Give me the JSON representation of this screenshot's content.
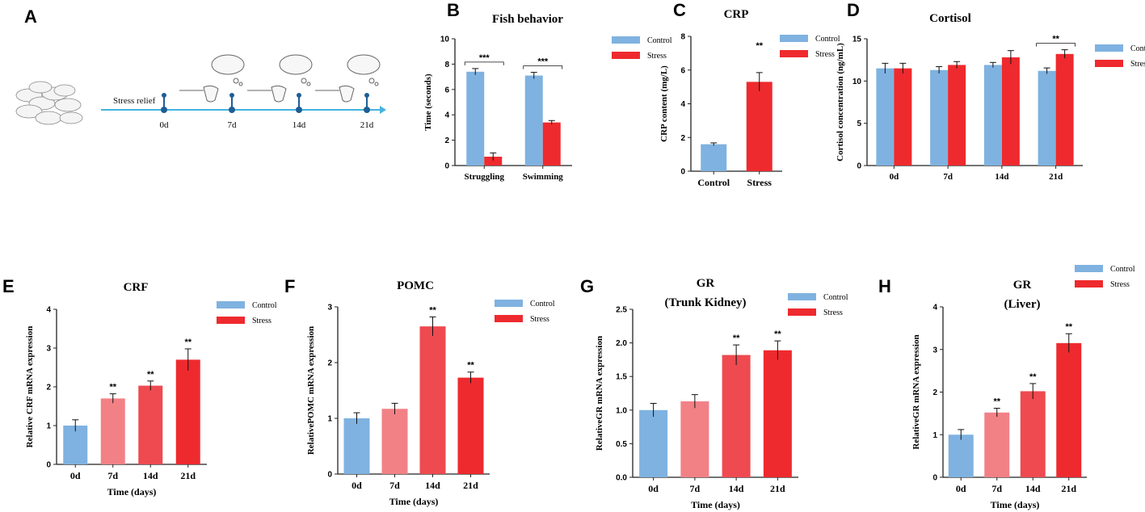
{
  "colors": {
    "control": "#7fb2e0",
    "stress": "#ee2a2e",
    "stress_light": "#f28186",
    "stress_mid": "#ee4a50",
    "axis": "#222222",
    "timeline": "#45b3e0",
    "marker": "#1e5e94"
  },
  "panel_a": {
    "letter": "A",
    "label_stress_relief": "Stress relief",
    "days": [
      "0d",
      "7d",
      "14d",
      "21d"
    ]
  },
  "chart_data": [
    {
      "id": "B",
      "letter": "B",
      "type": "bar",
      "title": "Fish behavior",
      "ylabel": "Time (seconds)",
      "xlabel": "",
      "ylim": [
        0,
        10
      ],
      "yticks": [
        "0",
        "2",
        "4",
        "6",
        "8",
        "10"
      ],
      "categories": [
        "Struggling",
        "Swimming"
      ],
      "series": [
        {
          "name": "Control",
          "values": [
            7.4,
            7.1
          ],
          "errors": [
            0.25,
            0.25
          ]
        },
        {
          "name": "Stress",
          "values": [
            0.7,
            3.4
          ],
          "errors": [
            0.3,
            0.15
          ]
        }
      ],
      "legend": [
        "Control",
        "Stress"
      ],
      "annotations": [
        {
          "category": 0,
          "text": "***",
          "bracket": true
        },
        {
          "category": 1,
          "text": "***",
          "bracket": true
        }
      ]
    },
    {
      "id": "C",
      "letter": "C",
      "type": "bar",
      "title": "CRP",
      "ylabel": "CRP content (mg/L)",
      "xlabel": "",
      "ylim": [
        0,
        8
      ],
      "yticks": [
        "0",
        "2",
        "4",
        "6",
        "8"
      ],
      "categories": [
        "Control",
        "Stress"
      ],
      "values": [
        1.6,
        5.3
      ],
      "errors": [
        0.08,
        0.55
      ],
      "legend": [
        "Control",
        "Stress"
      ],
      "annotations": [
        {
          "category": 1,
          "text": "**"
        }
      ]
    },
    {
      "id": "D",
      "letter": "D",
      "type": "bar",
      "title": "Cortisol",
      "ylabel": "Cortisol concentration (ng/mL)",
      "xlabel": "",
      "ylim": [
        0,
        15
      ],
      "yticks": [
        "0",
        "5",
        "10",
        "15"
      ],
      "categories": [
        "0d",
        "7d",
        "14d",
        "21d"
      ],
      "series": [
        {
          "name": "Control",
          "values": [
            11.5,
            11.3,
            11.9,
            11.2
          ],
          "errors": [
            0.6,
            0.4,
            0.3,
            0.35
          ]
        },
        {
          "name": "Stress",
          "values": [
            11.5,
            11.9,
            12.8,
            13.2
          ],
          "errors": [
            0.6,
            0.4,
            0.8,
            0.5
          ]
        }
      ],
      "legend": [
        "Control",
        "Stress"
      ],
      "annotations": [
        {
          "category": 3,
          "text": "**",
          "bracket": true
        }
      ]
    },
    {
      "id": "E",
      "letter": "E",
      "type": "bar",
      "title": "CRF",
      "ylabel": "Relative CRF mRNA expression",
      "xlabel": "Time (days)",
      "ylim": [
        0,
        4
      ],
      "yticks": [
        "0",
        "1",
        "2",
        "3",
        "4"
      ],
      "categories": [
        "0d",
        "7d",
        "14d",
        "21d"
      ],
      "values": [
        1.0,
        1.7,
        2.03,
        2.7
      ],
      "errors": [
        0.15,
        0.12,
        0.12,
        0.28
      ],
      "legend": [
        "Control",
        "Stress"
      ],
      "annotations": [
        {
          "category": 1,
          "text": "**"
        },
        {
          "category": 2,
          "text": "**"
        },
        {
          "category": 3,
          "text": "**"
        }
      ]
    },
    {
      "id": "F",
      "letter": "F",
      "type": "bar",
      "title": "POMC",
      "ylabel": "RelativePOMC mRNA expression",
      "xlabel": "Time (days)",
      "ylim": [
        0,
        3
      ],
      "yticks": [
        "0",
        "1",
        "2",
        "3"
      ],
      "categories": [
        "0d",
        "7d",
        "14d",
        "21d"
      ],
      "values": [
        1.0,
        1.17,
        2.65,
        1.73
      ],
      "errors": [
        0.1,
        0.1,
        0.17,
        0.1
      ],
      "legend": [
        "Control",
        "Stress"
      ],
      "annotations": [
        {
          "category": 2,
          "text": "**"
        },
        {
          "category": 3,
          "text": "**"
        }
      ]
    },
    {
      "id": "G",
      "letter": "G",
      "type": "bar",
      "title": "GR",
      "subtitle": "(Trunk Kidney)",
      "ylabel": "RelativeGR mRNA expression",
      "xlabel": "Time (days)",
      "ylim": [
        0,
        2.5
      ],
      "yticks": [
        "0.0",
        "0.5",
        "1.0",
        "1.5",
        "2.0",
        "2.5"
      ],
      "categories": [
        "0d",
        "7d",
        "14d",
        "21d"
      ],
      "values": [
        1.0,
        1.13,
        1.82,
        1.89
      ],
      "errors": [
        0.1,
        0.1,
        0.15,
        0.14
      ],
      "legend": [
        "Control",
        "Stress"
      ],
      "annotations": [
        {
          "category": 2,
          "text": "**"
        },
        {
          "category": 3,
          "text": "**"
        }
      ]
    },
    {
      "id": "H",
      "letter": "H",
      "type": "bar",
      "title": "GR",
      "subtitle": "(Liver)",
      "ylabel": "RelativeGR mRNA expression",
      "xlabel": "Time (days)",
      "ylim": [
        0,
        4
      ],
      "yticks": [
        "0",
        "1",
        "2",
        "3",
        "4"
      ],
      "categories": [
        "0d",
        "7d",
        "14d",
        "21d"
      ],
      "values": [
        1.0,
        1.52,
        2.02,
        3.15
      ],
      "errors": [
        0.12,
        0.1,
        0.18,
        0.22
      ],
      "legend": [
        "Control",
        "Stress"
      ],
      "annotations": [
        {
          "category": 1,
          "text": "**"
        },
        {
          "category": 2,
          "text": "**"
        },
        {
          "category": 3,
          "text": "**"
        }
      ]
    }
  ]
}
